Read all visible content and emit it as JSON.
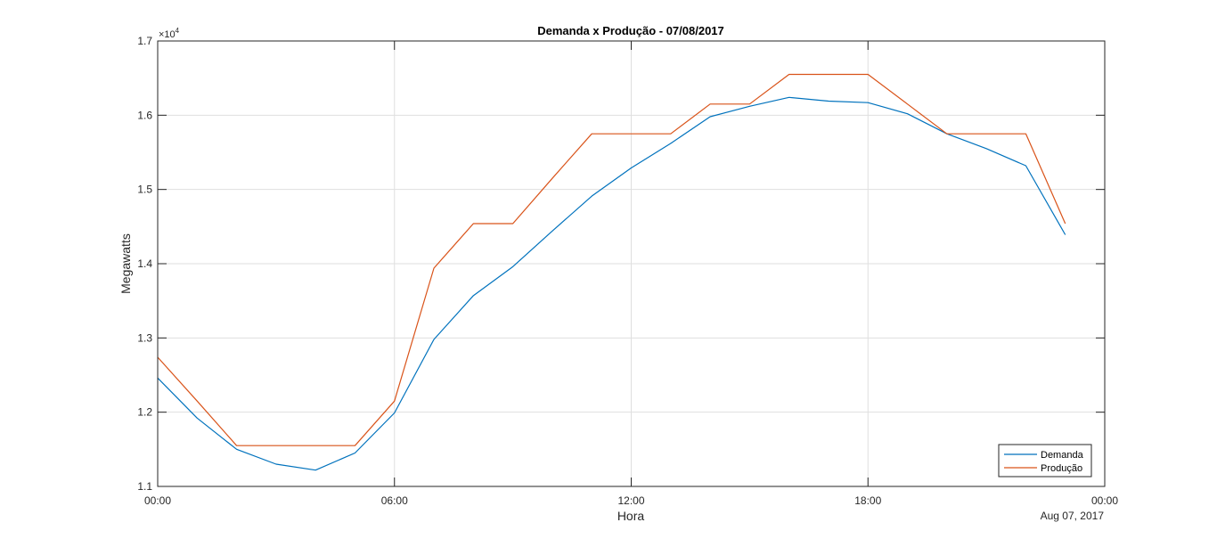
{
  "chart_data": {
    "type": "line",
    "title": "Demanda x Produção - 07/08/2017",
    "xlabel": "Hora",
    "ylabel": "Megawatts",
    "date_label": "Aug 07, 2017",
    "exponent_base": "×10",
    "exponent_power": "4",
    "x_tick_labels": [
      "00:00",
      "06:00",
      "12:00",
      "18:00",
      "00:00"
    ],
    "x_ticks_hours": [
      0,
      6,
      12,
      18,
      24
    ],
    "y_tick_labels": [
      "1.1",
      "1.2",
      "1.3",
      "1.4",
      "1.5",
      "1.6",
      "1.7"
    ],
    "y_ticks": [
      11000,
      12000,
      13000,
      14000,
      15000,
      16000,
      17000
    ],
    "xlim_hours": [
      0,
      24
    ],
    "ylim": [
      11000,
      17000
    ],
    "grid": true,
    "legend_position": "bottom-right",
    "hours": [
      0,
      1,
      2,
      3,
      4,
      5,
      6,
      7,
      8,
      9,
      10,
      11,
      12,
      13,
      14,
      15,
      16,
      17,
      18,
      19,
      20,
      21,
      22,
      23
    ],
    "series": [
      {
        "name": "Demanda",
        "color": "#0072BD",
        "values": [
          12460,
          11920,
          11500,
          11300,
          11220,
          11450,
          11990,
          12980,
          13570,
          13960,
          14440,
          14910,
          15290,
          15620,
          15980,
          16120,
          16240,
          16190,
          16170,
          16020,
          15750,
          15550,
          15320,
          14390
        ]
      },
      {
        "name": "Produção",
        "color": "#D95319",
        "values": [
          12740,
          12150,
          11550,
          11550,
          11550,
          11550,
          12150,
          13940,
          14540,
          14540,
          15150,
          15750,
          15750,
          15750,
          16150,
          16150,
          16550,
          16550,
          16550,
          16150,
          15750,
          15750,
          15750,
          14540
        ]
      }
    ]
  }
}
